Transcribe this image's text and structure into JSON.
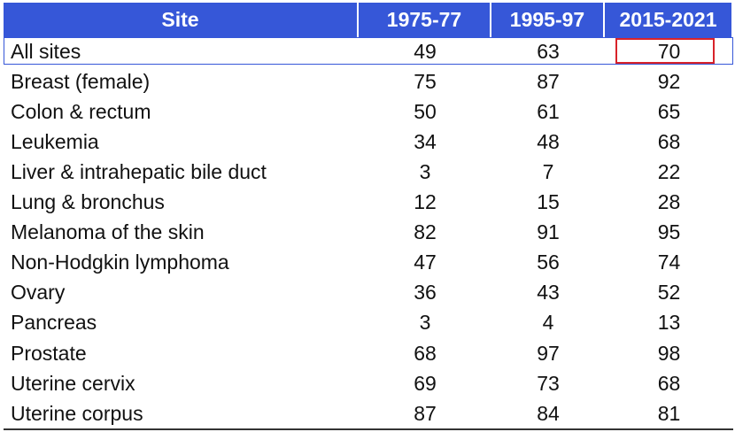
{
  "table": {
    "header": [
      "Site",
      "1975-77",
      "1995-97",
      "2015-2021"
    ],
    "rows": [
      [
        "All sites",
        49,
        63,
        70
      ],
      [
        "Breast (female)",
        75,
        87,
        92
      ],
      [
        "Colon & rectum",
        50,
        61,
        65
      ],
      [
        "Leukemia",
        34,
        48,
        68
      ],
      [
        "Liver & intrahepatic bile duct",
        3,
        7,
        22
      ],
      [
        "Lung & bronchus",
        12,
        15,
        28
      ],
      [
        "Melanoma of the skin",
        82,
        91,
        95
      ],
      [
        "Non-Hodgkin lymphoma",
        47,
        56,
        74
      ],
      [
        "Ovary",
        36,
        43,
        52
      ],
      [
        "Pancreas",
        3,
        4,
        13
      ],
      [
        "Prostate",
        68,
        97,
        98
      ],
      [
        "Uterine cervix",
        69,
        73,
        68
      ],
      [
        "Uterine corpus",
        87,
        84,
        81
      ]
    ]
  }
}
